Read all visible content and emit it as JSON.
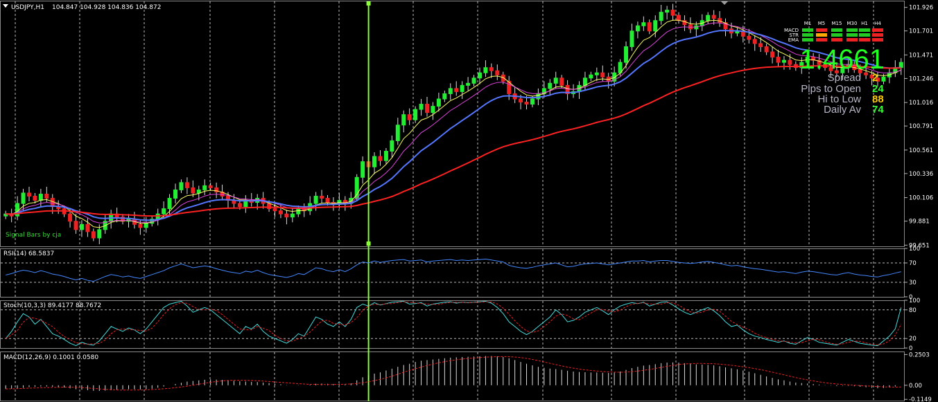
{
  "chart_data": [
    {
      "type": "candlestick",
      "title": "USDJPY,H1",
      "ohlc_label": "104.847 104.928 104.836 104.872",
      "y_ticks": [
        "101.926",
        "101.701",
        "101.471",
        "101.246",
        "101.016",
        "100.791",
        "100.561",
        "100.336",
        "100.106",
        "99.881",
        "99.651"
      ],
      "ylim": [
        99.64,
        101.99
      ],
      "colors": {
        "up": "#22ee33",
        "down": "#ee2222",
        "ema_fast": "#ffff66",
        "ema_mid": "#dd44dd",
        "ema_slow": "#5577ff",
        "ema_long": "#ff2222",
        "cursor": "#88ff33"
      },
      "signature": "Signal Bars by cja",
      "closes": [
        99.95,
        99.93,
        100.05,
        100.15,
        100.12,
        100.08,
        100.14,
        100.1,
        100.02,
        100.0,
        99.95,
        99.88,
        99.8,
        99.85,
        99.78,
        99.72,
        99.8,
        99.88,
        99.95,
        99.92,
        99.88,
        99.9,
        99.85,
        99.82,
        99.86,
        99.9,
        99.95,
        100.0,
        100.1,
        100.18,
        100.25,
        100.2,
        100.15,
        100.18,
        100.22,
        100.2,
        100.16,
        100.12,
        100.08,
        100.05,
        100.02,
        100.08,
        100.06,
        100.1,
        100.05,
        100.0,
        99.98,
        99.95,
        99.92,
        99.95,
        100.0,
        99.98,
        100.05,
        100.12,
        100.1,
        100.06,
        100.04,
        100.08,
        100.05,
        100.1,
        100.3,
        100.45,
        100.4,
        100.5,
        100.46,
        100.55,
        100.65,
        100.8,
        100.9,
        100.85,
        100.95,
        101.0,
        100.92,
        100.98,
        101.05,
        101.1,
        101.15,
        101.12,
        101.18,
        101.2,
        101.25,
        101.3,
        101.35,
        101.32,
        101.28,
        101.22,
        101.1,
        101.05,
        101.02,
        101.0,
        101.05,
        101.1,
        101.15,
        101.2,
        101.25,
        101.18,
        101.1,
        101.12,
        101.18,
        101.25,
        101.28,
        101.3,
        101.26,
        101.22,
        101.3,
        101.4,
        101.55,
        101.7,
        101.75,
        101.78,
        101.7,
        101.8,
        101.88,
        101.9,
        101.85,
        101.8,
        101.76,
        101.72,
        101.75,
        101.8,
        101.85,
        101.82,
        101.78,
        101.72,
        101.68,
        101.7,
        101.65,
        101.62,
        101.58,
        101.55,
        101.5,
        101.45,
        101.4,
        101.42,
        101.38,
        101.35,
        101.4,
        101.45,
        101.42,
        101.38,
        101.35,
        101.32,
        101.3,
        101.35,
        101.38,
        101.33,
        101.3,
        101.28,
        101.25,
        101.22,
        101.26,
        101.3,
        101.35,
        101.4
      ],
      "vertical_marker_index": 62
    },
    {
      "type": "line",
      "title": "RSI(14) 68.5837",
      "y_ticks": [
        "100",
        "70",
        "30",
        "0"
      ],
      "ylim": [
        0,
        100
      ],
      "levels": [
        70,
        30
      ],
      "colors": {
        "line": "#4488ff"
      },
      "values": [
        45,
        48,
        52,
        55,
        53,
        50,
        54,
        51,
        47,
        45,
        42,
        38,
        35,
        38,
        34,
        32,
        37,
        42,
        46,
        44,
        41,
        43,
        40,
        38,
        42,
        46,
        50,
        54,
        60,
        64,
        68,
        64,
        60,
        62,
        64,
        62,
        58,
        55,
        52,
        50,
        48,
        53,
        51,
        55,
        50,
        46,
        44,
        42,
        40,
        43,
        48,
        46,
        53,
        60,
        58,
        54,
        52,
        56,
        52,
        58,
        66,
        72,
        70,
        74,
        71,
        73,
        75,
        76,
        77,
        74,
        75,
        76,
        72,
        74,
        75,
        76,
        77,
        75,
        76,
        75,
        76,
        77,
        78,
        76,
        74,
        72,
        65,
        62,
        60,
        59,
        61,
        64,
        66,
        68,
        70,
        66,
        62,
        63,
        66,
        68,
        69,
        70,
        68,
        66,
        68,
        70,
        72,
        74,
        74,
        75,
        72,
        74,
        75,
        75,
        73,
        71,
        70,
        69,
        70,
        72,
        73,
        71,
        69,
        66,
        64,
        65,
        62,
        60,
        58,
        57,
        55,
        53,
        51,
        52,
        50,
        48,
        51,
        53,
        52,
        50,
        48,
        46,
        45,
        48,
        50,
        47,
        45,
        44,
        42,
        41,
        44,
        46,
        49,
        52
      ]
    },
    {
      "type": "line",
      "title": "Stoch(10,3,3) 89.4177 88.7672",
      "y_ticks": [
        "100",
        "80",
        "20",
        "0"
      ],
      "ylim": [
        0,
        100
      ],
      "levels": [
        80,
        20
      ],
      "colors": {
        "main": "#44dddd",
        "signal": "#ee2222"
      },
      "values": [
        20,
        35,
        55,
        72,
        65,
        50,
        60,
        45,
        30,
        25,
        18,
        10,
        5,
        12,
        8,
        6,
        15,
        30,
        45,
        40,
        35,
        42,
        38,
        30,
        40,
        55,
        70,
        85,
        92,
        95,
        98,
        88,
        75,
        80,
        85,
        80,
        70,
        60,
        50,
        40,
        30,
        45,
        40,
        50,
        35,
        25,
        20,
        15,
        10,
        18,
        30,
        25,
        45,
        65,
        60,
        50,
        45,
        55,
        45,
        60,
        85,
        92,
        88,
        95,
        90,
        93,
        96,
        97,
        98,
        92,
        93,
        95,
        88,
        92,
        94,
        96,
        97,
        94,
        96,
        95,
        96,
        97,
        98,
        94,
        85,
        72,
        55,
        45,
        35,
        28,
        35,
        45,
        55,
        65,
        80,
        70,
        55,
        58,
        65,
        75,
        80,
        85,
        78,
        70,
        80,
        88,
        92,
        95,
        93,
        96,
        88,
        92,
        96,
        97,
        90,
        82,
        75,
        70,
        75,
        80,
        85,
        78,
        68,
        55,
        45,
        48,
        38,
        30,
        25,
        22,
        18,
        15,
        12,
        15,
        10,
        8,
        15,
        22,
        18,
        12,
        10,
        8,
        6,
        12,
        18,
        14,
        10,
        8,
        6,
        5,
        15,
        25,
        40,
        85
      ]
    },
    {
      "type": "bar",
      "title": "MACD(12,26,9) 0.1001 0.0580",
      "y_ticks": [
        "0.2503",
        "0.00",
        "-0.1149"
      ],
      "ylim": [
        -0.125,
        0.275
      ],
      "colors": {
        "hist": "#dddddd",
        "signal": "#ee2222"
      },
      "values": [
        -0.03,
        -0.028,
        -0.025,
        -0.02,
        -0.015,
        -0.012,
        -0.01,
        -0.01,
        -0.012,
        -0.015,
        -0.018,
        -0.025,
        -0.032,
        -0.036,
        -0.04,
        -0.045,
        -0.046,
        -0.044,
        -0.04,
        -0.036,
        -0.034,
        -0.032,
        -0.032,
        -0.034,
        -0.032,
        -0.028,
        -0.02,
        -0.01,
        0.0,
        0.01,
        0.02,
        0.03,
        0.035,
        0.04,
        0.045,
        0.048,
        0.046,
        0.044,
        0.04,
        0.036,
        0.032,
        0.03,
        0.028,
        0.026,
        0.022,
        0.018,
        0.012,
        0.008,
        0.002,
        0.0,
        0.002,
        0.0,
        0.005,
        0.012,
        0.014,
        0.012,
        0.01,
        0.012,
        0.01,
        0.015,
        0.04,
        0.065,
        0.08,
        0.095,
        0.105,
        0.12,
        0.135,
        0.15,
        0.165,
        0.175,
        0.19,
        0.2,
        0.205,
        0.21,
        0.215,
        0.22,
        0.225,
        0.228,
        0.23,
        0.232,
        0.234,
        0.236,
        0.238,
        0.238,
        0.236,
        0.23,
        0.22,
        0.205,
        0.19,
        0.175,
        0.162,
        0.15,
        0.142,
        0.136,
        0.132,
        0.126,
        0.118,
        0.112,
        0.108,
        0.106,
        0.104,
        0.104,
        0.102,
        0.1,
        0.104,
        0.112,
        0.125,
        0.14,
        0.15,
        0.16,
        0.165,
        0.172,
        0.18,
        0.185,
        0.186,
        0.184,
        0.18,
        0.175,
        0.17,
        0.168,
        0.166,
        0.162,
        0.155,
        0.146,
        0.138,
        0.13,
        0.12,
        0.11,
        0.098,
        0.085,
        0.072,
        0.06,
        0.048,
        0.04,
        0.03,
        0.022,
        0.018,
        0.014,
        0.01,
        0.006,
        0.002,
        -0.002,
        -0.006,
        -0.004,
        -0.004,
        -0.008,
        -0.012,
        -0.016,
        -0.02,
        -0.024,
        -0.022,
        -0.018,
        -0.01,
        0.0
      ]
    }
  ],
  "overlay": {
    "price": "1.4661",
    "rows": [
      {
        "label": "Spread",
        "value": "2",
        "color": "#ffcc00"
      },
      {
        "label": "Pips to Open",
        "value": "24",
        "color": "#33ff33"
      },
      {
        "label": "Hi to Low",
        "value": "88",
        "color": "#ffcc00"
      },
      {
        "label": "Daily Av",
        "value": "74",
        "color": "#33ff33"
      }
    ],
    "matrix": {
      "timeframes": [
        "M1",
        "M5",
        "M15",
        "M30",
        "H1",
        "H4"
      ],
      "indicators": [
        "MACD",
        "STR",
        "EMA"
      ],
      "colors": [
        [
          "#22cc22",
          "#ee2222",
          "#22cc22",
          "#22cc22",
          "#22cc22",
          "#ee2222"
        ],
        [
          "#22cc22",
          "#ffaa00",
          "#22cc22",
          "#22cc22",
          "#22cc22",
          "#ee2222"
        ],
        [
          "#22cc22",
          "#ee2222",
          "#ee2222",
          "#ee2222",
          "#ee2222",
          "#ee2222"
        ]
      ]
    }
  }
}
